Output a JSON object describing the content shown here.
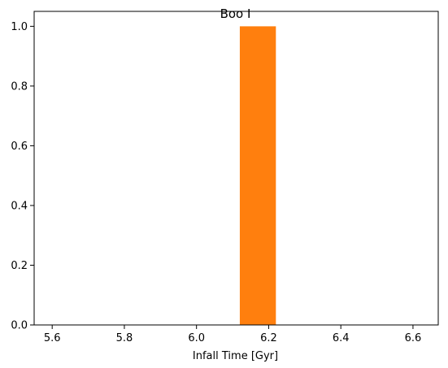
{
  "chart_data": {
    "type": "bar",
    "title": "Boo I",
    "xlabel": "Infall Time [Gyr]",
    "ylabel": "",
    "xlim": [
      5.55,
      6.67
    ],
    "ylim": [
      0,
      1.05
    ],
    "xticks": [
      5.6,
      5.8,
      6.0,
      6.2,
      6.4,
      6.6
    ],
    "xtick_labels": [
      "5.6",
      "5.8",
      "6.0",
      "6.2",
      "6.4",
      "6.6"
    ],
    "yticks": [
      0.0,
      0.2,
      0.4,
      0.6,
      0.8,
      1.0
    ],
    "ytick_labels": [
      "0.0",
      "0.2",
      "0.4",
      "0.6",
      "0.8",
      "1.0"
    ],
    "bars": [
      {
        "x_start": 6.12,
        "x_end": 6.22,
        "value": 1.0,
        "color": "#ff7f0e"
      }
    ],
    "grid": false,
    "legend": "none"
  }
}
